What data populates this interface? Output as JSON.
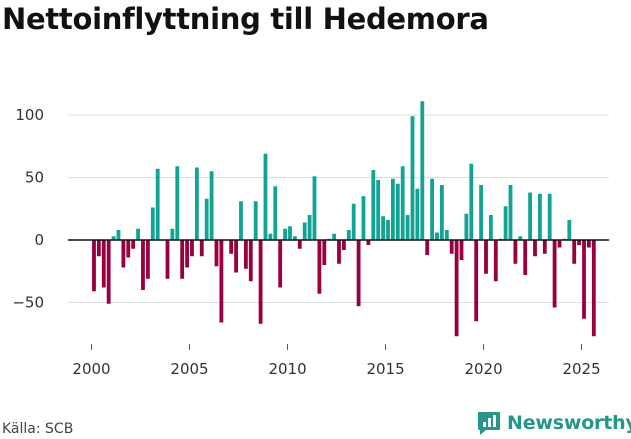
{
  "title": "Nettoinflyttning till Hedemora",
  "source": "Källa: SCB",
  "brand": {
    "name": "Newsworthy",
    "icon": "newsworthy-logo-icon"
  },
  "colors": {
    "positive": "#13a394",
    "negative": "#99003f",
    "grid": "#dddddd",
    "zero": "#111111",
    "brand": "#26968a"
  },
  "chart_data": {
    "type": "bar",
    "title": "Nettoinflyttning till Hedemora",
    "xlabel": "",
    "ylabel": "",
    "ylim": [
      -80,
      120
    ],
    "xlim": [
      1998.8,
      2026.4
    ],
    "yticks": [
      -50,
      0,
      50,
      100
    ],
    "ytick_labels": [
      "−50",
      "0",
      "50",
      "100"
    ],
    "xticks": [
      2000,
      2005,
      2010,
      2015,
      2020,
      2025
    ],
    "xtick_labels": [
      "2000",
      "2005",
      "2010",
      "2015",
      "2020",
      "2025"
    ],
    "grid": true,
    "period": "quarterly",
    "x_start": 2000.125,
    "x_step": 0.25,
    "values": [
      -41,
      -13,
      -38,
      -51,
      3,
      8,
      -22,
      -14,
      -7,
      9,
      -40,
      -31,
      26,
      57,
      0,
      -31,
      9,
      59,
      -31,
      -22,
      -13,
      58,
      -13,
      33,
      55,
      -21,
      -66,
      0,
      -11,
      -26,
      31,
      -23,
      -33,
      31,
      -67,
      69,
      5,
      43,
      -38,
      9,
      11,
      3,
      -7,
      14,
      20,
      51,
      -43,
      -20,
      1,
      5,
      -19,
      -8,
      8,
      29,
      -53,
      35,
      -4,
      56,
      48,
      19,
      16,
      49,
      45,
      59,
      20,
      99,
      41,
      111,
      -12,
      49,
      6,
      44,
      8,
      -11,
      -77,
      -16,
      21,
      61,
      -65,
      44,
      -27,
      20,
      -33,
      1,
      27,
      44,
      -19,
      3,
      -28,
      38,
      -13,
      37,
      -11,
      37,
      -54,
      -6,
      1,
      16,
      -19,
      -4,
      -63,
      -6,
      -77
    ]
  }
}
